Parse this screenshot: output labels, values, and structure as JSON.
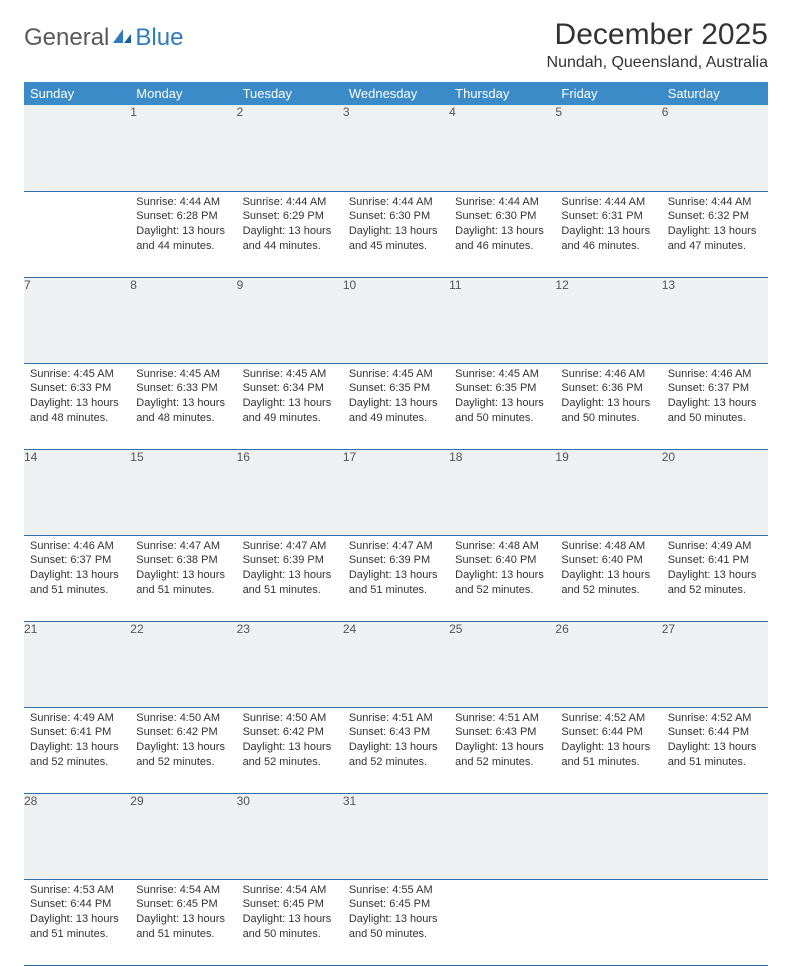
{
  "logo": {
    "text1": "General",
    "text2": "Blue"
  },
  "title": "December 2025",
  "location": "Nundah, Queensland, Australia",
  "colors": {
    "header_bg": "#3b8bc9",
    "header_text": "#ffffff",
    "daynum_bg": "#eef0f1",
    "row_divider": "#2f6fa8",
    "logo_gray": "#5a5a5a",
    "logo_blue": "#2f7bbf"
  },
  "weekdays": [
    "Sunday",
    "Monday",
    "Tuesday",
    "Wednesday",
    "Thursday",
    "Friday",
    "Saturday"
  ],
  "weeks": [
    [
      null,
      {
        "n": "1",
        "sr": "4:44 AM",
        "ss": "6:28 PM",
        "dl": "13 hours and 44 minutes."
      },
      {
        "n": "2",
        "sr": "4:44 AM",
        "ss": "6:29 PM",
        "dl": "13 hours and 44 minutes."
      },
      {
        "n": "3",
        "sr": "4:44 AM",
        "ss": "6:30 PM",
        "dl": "13 hours and 45 minutes."
      },
      {
        "n": "4",
        "sr": "4:44 AM",
        "ss": "6:30 PM",
        "dl": "13 hours and 46 minutes."
      },
      {
        "n": "5",
        "sr": "4:44 AM",
        "ss": "6:31 PM",
        "dl": "13 hours and 46 minutes."
      },
      {
        "n": "6",
        "sr": "4:44 AM",
        "ss": "6:32 PM",
        "dl": "13 hours and 47 minutes."
      }
    ],
    [
      {
        "n": "7",
        "sr": "4:45 AM",
        "ss": "6:33 PM",
        "dl": "13 hours and 48 minutes."
      },
      {
        "n": "8",
        "sr": "4:45 AM",
        "ss": "6:33 PM",
        "dl": "13 hours and 48 minutes."
      },
      {
        "n": "9",
        "sr": "4:45 AM",
        "ss": "6:34 PM",
        "dl": "13 hours and 49 minutes."
      },
      {
        "n": "10",
        "sr": "4:45 AM",
        "ss": "6:35 PM",
        "dl": "13 hours and 49 minutes."
      },
      {
        "n": "11",
        "sr": "4:45 AM",
        "ss": "6:35 PM",
        "dl": "13 hours and 50 minutes."
      },
      {
        "n": "12",
        "sr": "4:46 AM",
        "ss": "6:36 PM",
        "dl": "13 hours and 50 minutes."
      },
      {
        "n": "13",
        "sr": "4:46 AM",
        "ss": "6:37 PM",
        "dl": "13 hours and 50 minutes."
      }
    ],
    [
      {
        "n": "14",
        "sr": "4:46 AM",
        "ss": "6:37 PM",
        "dl": "13 hours and 51 minutes."
      },
      {
        "n": "15",
        "sr": "4:47 AM",
        "ss": "6:38 PM",
        "dl": "13 hours and 51 minutes."
      },
      {
        "n": "16",
        "sr": "4:47 AM",
        "ss": "6:39 PM",
        "dl": "13 hours and 51 minutes."
      },
      {
        "n": "17",
        "sr": "4:47 AM",
        "ss": "6:39 PM",
        "dl": "13 hours and 51 minutes."
      },
      {
        "n": "18",
        "sr": "4:48 AM",
        "ss": "6:40 PM",
        "dl": "13 hours and 52 minutes."
      },
      {
        "n": "19",
        "sr": "4:48 AM",
        "ss": "6:40 PM",
        "dl": "13 hours and 52 minutes."
      },
      {
        "n": "20",
        "sr": "4:49 AM",
        "ss": "6:41 PM",
        "dl": "13 hours and 52 minutes."
      }
    ],
    [
      {
        "n": "21",
        "sr": "4:49 AM",
        "ss": "6:41 PM",
        "dl": "13 hours and 52 minutes."
      },
      {
        "n": "22",
        "sr": "4:50 AM",
        "ss": "6:42 PM",
        "dl": "13 hours and 52 minutes."
      },
      {
        "n": "23",
        "sr": "4:50 AM",
        "ss": "6:42 PM",
        "dl": "13 hours and 52 minutes."
      },
      {
        "n": "24",
        "sr": "4:51 AM",
        "ss": "6:43 PM",
        "dl": "13 hours and 52 minutes."
      },
      {
        "n": "25",
        "sr": "4:51 AM",
        "ss": "6:43 PM",
        "dl": "13 hours and 52 minutes."
      },
      {
        "n": "26",
        "sr": "4:52 AM",
        "ss": "6:44 PM",
        "dl": "13 hours and 51 minutes."
      },
      {
        "n": "27",
        "sr": "4:52 AM",
        "ss": "6:44 PM",
        "dl": "13 hours and 51 minutes."
      }
    ],
    [
      {
        "n": "28",
        "sr": "4:53 AM",
        "ss": "6:44 PM",
        "dl": "13 hours and 51 minutes."
      },
      {
        "n": "29",
        "sr": "4:54 AM",
        "ss": "6:45 PM",
        "dl": "13 hours and 51 minutes."
      },
      {
        "n": "30",
        "sr": "4:54 AM",
        "ss": "6:45 PM",
        "dl": "13 hours and 50 minutes."
      },
      {
        "n": "31",
        "sr": "4:55 AM",
        "ss": "6:45 PM",
        "dl": "13 hours and 50 minutes."
      },
      null,
      null,
      null
    ]
  ],
  "labels": {
    "sunrise": "Sunrise:",
    "sunset": "Sunset:",
    "daylight": "Daylight:"
  }
}
